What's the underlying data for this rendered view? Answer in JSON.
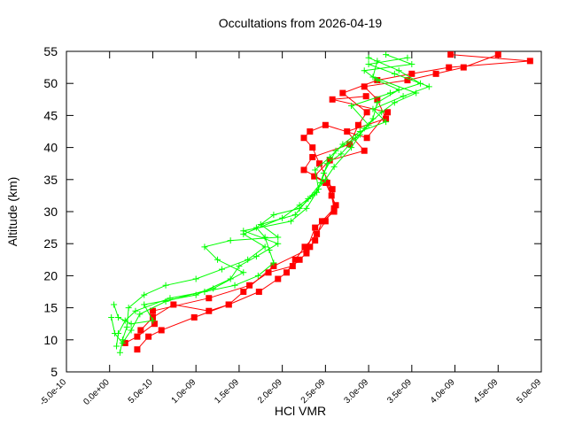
{
  "chart_data": {
    "type": "line",
    "title": "Occultations from 2026-04-19",
    "xlabel": "HCl VMR",
    "ylabel": "Altitude (km)",
    "xlim": [
      -5e-10,
      5e-09
    ],
    "ylim": [
      5,
      55
    ],
    "x_ticks": [
      -5e-10,
      0,
      5e-10,
      1e-09,
      1.5e-09,
      2e-09,
      2.5e-09,
      3e-09,
      3.5e-09,
      4e-09,
      4.5e-09,
      5e-09
    ],
    "x_tick_labels": [
      "-5.0e-10",
      "0.0e+00",
      "5.0e-10",
      "1.0e-09",
      "1.5e-09",
      "2.0e-09",
      "2.5e-09",
      "3.0e-09",
      "3.5e-09",
      "4.0e-09",
      "4.5e-09",
      "5.0e-09"
    ],
    "y_ticks": [
      5,
      10,
      15,
      20,
      25,
      30,
      35,
      40,
      45,
      50,
      55
    ],
    "y_tick_labels": [
      "5",
      "10",
      "15",
      "20",
      "25",
      "30",
      "35",
      "40",
      "45",
      "50",
      "55"
    ],
    "grid": false,
    "series": [
      {
        "color": "#ff0000",
        "marker": "square",
        "points": [
          [
            1.8e-10,
            9.5
          ],
          [
            3.2e-10,
            10.5
          ],
          [
            5.2e-10,
            12.5
          ],
          [
            5e-10,
            14.5
          ],
          [
            1.15e-09,
            16.5
          ],
          [
            1.62e-09,
            18.5
          ],
          [
            1.84e-09,
            20.5
          ],
          [
            2.12e-09,
            21.5
          ],
          [
            2.2e-09,
            22.5
          ],
          [
            2.28e-09,
            23.5
          ],
          [
            2.32e-09,
            24.5
          ],
          [
            2.38e-09,
            25.5
          ],
          [
            2.46e-09,
            28.5
          ],
          [
            2.6e-09,
            30.5
          ],
          [
            2.57e-09,
            32.5
          ],
          [
            2.52e-09,
            34.5
          ],
          [
            2.25e-09,
            36.5
          ],
          [
            2.35e-09,
            38.5
          ],
          [
            2.78e-09,
            40.5
          ],
          [
            2.88e-09,
            43.5
          ],
          [
            2.98e-09,
            45.5
          ],
          [
            2.7e-09,
            48.5
          ],
          [
            3.1e-09,
            50.5
          ],
          [
            3.5e-09,
            51.5
          ],
          [
            3.93e-09,
            52.5
          ],
          [
            4.87e-09,
            53.5
          ],
          [
            3.95e-09,
            54.5
          ]
        ]
      },
      {
        "color": "#ff0000",
        "marker": "square",
        "points": [
          [
            3.2e-10,
            8.5
          ],
          [
            4.5e-10,
            10.5
          ],
          [
            6e-10,
            11.5
          ],
          [
            9.8e-10,
            13.5
          ],
          [
            1.38e-09,
            15.5
          ],
          [
            1.73e-09,
            17.5
          ],
          [
            1.95e-09,
            19.5
          ],
          [
            2.05e-09,
            20.5
          ],
          [
            2.15e-09,
            22.5
          ],
          [
            2.26e-09,
            24.5
          ],
          [
            2.4e-09,
            26.5
          ],
          [
            2.5e-09,
            28.5
          ],
          [
            2.62e-09,
            31.0
          ],
          [
            2.5e-09,
            34.5
          ],
          [
            2.37e-09,
            35.5
          ],
          [
            2.55e-09,
            38.0
          ],
          [
            2.95e-09,
            39.5
          ],
          [
            2.75e-09,
            42.5
          ],
          [
            3.2e-09,
            44.5
          ],
          [
            3.1e-09,
            47.5
          ],
          [
            2.95e-09,
            49.5
          ],
          [
            3.45e-09,
            50.5
          ],
          [
            3.78e-09,
            51.5
          ],
          [
            4.1e-09,
            52.5
          ],
          [
            4.5e-09,
            54.5
          ]
        ]
      },
      {
        "color": "#ff0000",
        "marker": "square",
        "points": [
          [
            3.6e-10,
            11.5
          ],
          [
            5e-10,
            13.5
          ],
          [
            7.4e-10,
            15.5
          ],
          [
            1.15e-09,
            14.5
          ],
          [
            1.38e-09,
            15.5
          ],
          [
            1.55e-09,
            17.5
          ],
          [
            1.9e-09,
            21.5
          ],
          [
            2.28e-09,
            24.0
          ],
          [
            2.38e-09,
            27.5
          ],
          [
            2.6e-09,
            30.0
          ],
          [
            2.58e-09,
            33.5
          ],
          [
            2.43e-09,
            37.5
          ],
          [
            2.35e-09,
            40.0
          ],
          [
            2.25e-09,
            41.5
          ],
          [
            2.32e-09,
            42.5
          ],
          [
            2.5e-09,
            43.5
          ],
          [
            2.98e-09,
            41.5
          ],
          [
            3.22e-09,
            45.5
          ],
          [
            2.58e-09,
            47.5
          ],
          [
            2.97e-09,
            48.0
          ]
        ]
      },
      {
        "color": "#00ff00",
        "marker": "plus",
        "points": [
          [
            1.2e-10,
            8.0
          ],
          [
            1.5e-10,
            10.0
          ],
          [
            2e-10,
            12.0
          ],
          [
            2.2e-10,
            15.0
          ],
          [
            4e-10,
            17.0
          ],
          [
            6.5e-10,
            18.5
          ],
          [
            1e-09,
            19.5
          ],
          [
            1.3e-09,
            21.0
          ],
          [
            1.6e-09,
            22.5
          ],
          [
            1.8e-09,
            24.5
          ],
          [
            1.55e-09,
            26.5
          ],
          [
            2e-09,
            29.0
          ],
          [
            2.2e-09,
            31.0
          ],
          [
            2.4e-09,
            33.0
          ],
          [
            2.48e-09,
            36.0
          ],
          [
            2.62e-09,
            39.5
          ],
          [
            2.9e-09,
            42.0
          ],
          [
            3.05e-09,
            44.5
          ],
          [
            3.1e-09,
            47.0
          ],
          [
            3.35e-09,
            49.0
          ],
          [
            3.1e-09,
            50.5
          ],
          [
            2.95e-09,
            52.0
          ],
          [
            3.5e-09,
            53.0
          ],
          [
            3.2e-09,
            54.5
          ]
        ]
      },
      {
        "color": "#00ff00",
        "marker": "plus",
        "points": [
          [
            8e-11,
            9.0
          ],
          [
            1e-10,
            11.0
          ],
          [
            1.8e-10,
            13.0
          ],
          [
            3e-10,
            14.5
          ],
          [
            7e-10,
            16.5
          ],
          [
            1.1e-09,
            17.5
          ],
          [
            1.45e-09,
            18.5
          ],
          [
            1.72e-09,
            20.0
          ],
          [
            1.9e-09,
            22.0
          ],
          [
            1.85e-09,
            24.0
          ],
          [
            1.8e-09,
            26.0
          ],
          [
            1.7e-09,
            27.5
          ],
          [
            1.9e-09,
            29.5
          ],
          [
            2.2e-09,
            30.5
          ],
          [
            2.35e-09,
            32.5
          ],
          [
            2.5e-09,
            35.0
          ],
          [
            2.6e-09,
            37.0
          ],
          [
            2.8e-09,
            40.0
          ],
          [
            2.95e-09,
            43.0
          ],
          [
            3.15e-09,
            45.5
          ],
          [
            3.3e-09,
            47.0
          ],
          [
            3.55e-09,
            48.5
          ],
          [
            3.05e-09,
            51.0
          ],
          [
            3.1e-09,
            53.5
          ]
        ]
      },
      {
        "color": "#00ff00",
        "marker": "plus",
        "points": [
          [
            5e-11,
            15.5
          ],
          [
            1e-10,
            13.5
          ],
          [
            2.5e-10,
            12.5
          ],
          [
            5e-10,
            13.0
          ],
          [
            4e-10,
            15.5
          ],
          [
            1e-09,
            17.0
          ],
          [
            1.4e-09,
            19.5
          ],
          [
            1.5e-09,
            21.5
          ],
          [
            1.7e-09,
            23.0
          ],
          [
            1.95e-09,
            25.0
          ],
          [
            1.55e-09,
            27.0
          ],
          [
            2.1e-09,
            28.5
          ],
          [
            2.28e-09,
            30.5
          ],
          [
            2.42e-09,
            33.5
          ],
          [
            2.38e-09,
            36.5
          ],
          [
            2.55e-09,
            38.5
          ],
          [
            2.7e-09,
            40.5
          ],
          [
            2.9e-09,
            42.5
          ],
          [
            3.2e-09,
            44.0
          ],
          [
            3.05e-09,
            46.0
          ],
          [
            3.4e-09,
            48.0
          ],
          [
            3.7e-09,
            49.5
          ],
          [
            3.3e-09,
            51.5
          ],
          [
            3e-09,
            53.0
          ],
          [
            3.45e-09,
            54.0
          ]
        ]
      },
      {
        "color": "#00ff00",
        "marker": "plus",
        "points": [
          [
            2e-11,
            13.5
          ],
          [
            6e-11,
            11.0
          ],
          [
            1.5e-10,
            9.5
          ],
          [
            2.5e-10,
            11.5
          ],
          [
            3.5e-10,
            14.0
          ],
          [
            6.5e-10,
            16.0
          ],
          [
            1.2e-09,
            18.0
          ],
          [
            1.55e-09,
            20.5
          ],
          [
            1.25e-09,
            22.5
          ],
          [
            1.1e-09,
            24.5
          ],
          [
            1.4e-09,
            25.5
          ],
          [
            1.95e-09,
            26.0
          ],
          [
            1.75e-09,
            28.0
          ],
          [
            2.15e-09,
            29.5
          ],
          [
            2.3e-09,
            32.0
          ],
          [
            2.45e-09,
            34.5
          ],
          [
            2.52e-09,
            37.5
          ],
          [
            2.68e-09,
            39.0
          ],
          [
            2.85e-09,
            41.5
          ],
          [
            3e-09,
            43.5
          ],
          [
            2.8e-09,
            46.5
          ],
          [
            3.25e-09,
            48.5
          ],
          [
            3.6e-09,
            50.0
          ],
          [
            3.35e-09,
            52.0
          ],
          [
            3e-09,
            54.0
          ]
        ]
      }
    ]
  }
}
